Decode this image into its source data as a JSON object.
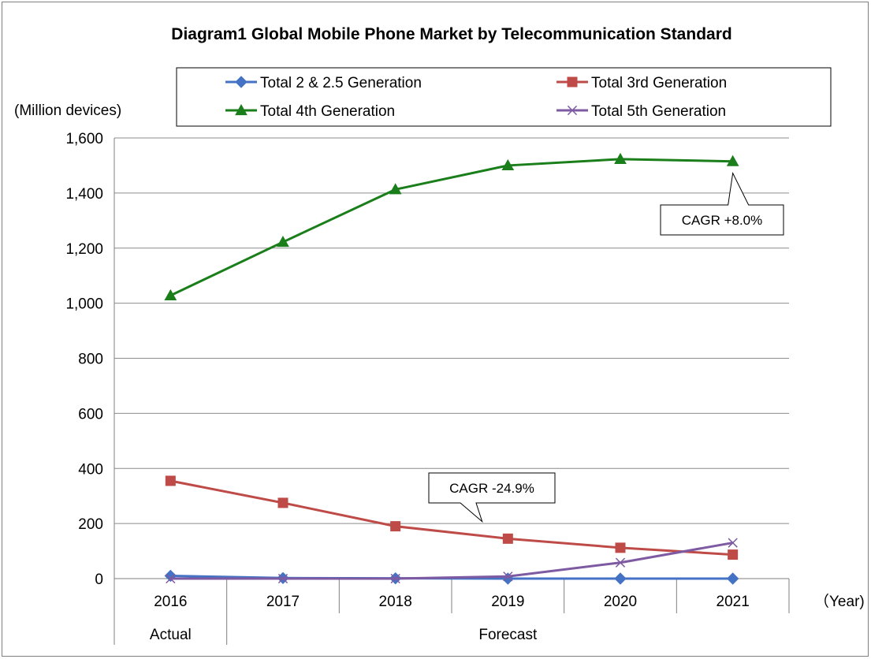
{
  "chart_data": {
    "type": "line",
    "title": "Diagram1 Global Mobile Phone Market by Telecommunication Standard",
    "ylabel": "(Million devices)",
    "xlabel": "（Year)",
    "categories": [
      "2016",
      "2017",
      "2018",
      "2019",
      "2020",
      "2021"
    ],
    "period_labels": {
      "actual": "Actual",
      "forecast": "Forecast"
    },
    "ylim": [
      0,
      1600
    ],
    "yticks": [
      "0",
      "200",
      "400",
      "600",
      "800",
      "1,000",
      "1,200",
      "1,400",
      "1,600"
    ],
    "grid": true,
    "legend_position": "top",
    "series": [
      {
        "name": "Total 2 & 2.5 Generation",
        "values": [
          10,
          2,
          1,
          0,
          0,
          0
        ],
        "color": "#4472c4",
        "marker": "diamond"
      },
      {
        "name": "Total 3rd Generation",
        "values": [
          355,
          275,
          190,
          145,
          112,
          87
        ],
        "color": "#be4b48",
        "marker": "square"
      },
      {
        "name": "Total 4th Generation",
        "values": [
          1028,
          1222,
          1413,
          1500,
          1523,
          1515
        ],
        "color": "#1a7e1a",
        "marker": "triangle"
      },
      {
        "name": "Total 5th Generation",
        "values": [
          0,
          0,
          0,
          8,
          58,
          130
        ],
        "color": "#7e5aa2",
        "marker": "x"
      }
    ],
    "annotations": [
      {
        "text": "CAGR +8.0%",
        "series": "Total 4th Generation",
        "point": "2021"
      },
      {
        "text": "CAGR -24.9%",
        "series": "Total 3rd Generation",
        "point": "2018"
      }
    ]
  }
}
